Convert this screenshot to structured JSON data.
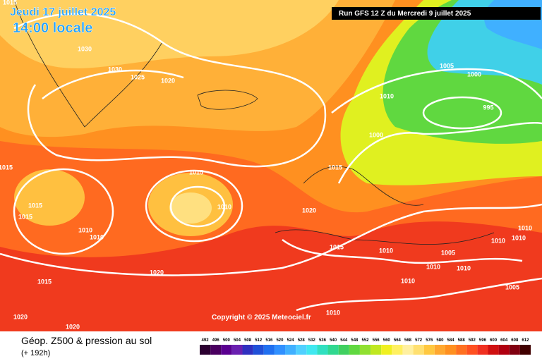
{
  "header": {
    "valid_date": "Jeudi 17 juillet 2025",
    "valid_time": "14:00 locale",
    "run": "Run GFS 12 Z du Mercredi 9 juillet 2025"
  },
  "copyright": "Copyright © 2025 Meteociel.fr",
  "footer": {
    "title": "Géop. Z500 & pression au sol",
    "lead": "(+ 192h)"
  },
  "isobar_labels": [
    "1015",
    "1030",
    "1030",
    "1025",
    "1020",
    "1010",
    "1005",
    "1000",
    "995",
    "1000",
    "1015",
    "1015",
    "1015",
    "1015",
    "1015",
    "1010",
    "1020",
    "1010",
    "1010",
    "1010",
    "1010",
    "1010",
    "1015",
    "1010",
    "1005",
    "1010",
    "1010",
    "1020",
    "1015",
    "1010",
    "1005",
    "1010",
    "1020",
    "1020"
  ],
  "scale": {
    "ticks": [
      492,
      496,
      500,
      504,
      508,
      512,
      516,
      520,
      524,
      528,
      532,
      536,
      540,
      544,
      548,
      552,
      556,
      560,
      564,
      568,
      572,
      576,
      580,
      584,
      588,
      592,
      596,
      600,
      604,
      608,
      612
    ],
    "colors": [
      "#2b0030",
      "#4a0060",
      "#5a0090",
      "#6a20b0",
      "#3030c0",
      "#2050d8",
      "#2070f0",
      "#3090ff",
      "#40b0ff",
      "#50d0ff",
      "#40e8f0",
      "#30e0c0",
      "#30d890",
      "#40d060",
      "#60d840",
      "#90e030",
      "#c0e820",
      "#f0f020",
      "#fff060",
      "#fff0a0",
      "#ffe070",
      "#ffc840",
      "#ffa830",
      "#ff9020",
      "#ff7020",
      "#ff5020",
      "#f03020",
      "#d01010",
      "#b00010",
      "#800010",
      "#400000"
    ]
  }
}
